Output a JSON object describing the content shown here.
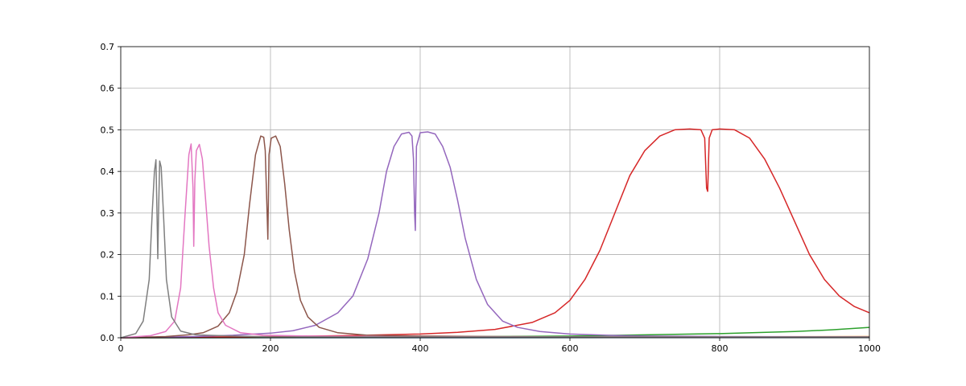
{
  "chart_data": {
    "type": "line",
    "title": "",
    "xlabel": "",
    "ylabel": "",
    "xlim": [
      0,
      1000
    ],
    "ylim": [
      0,
      0.7
    ],
    "xticks": [
      "0",
      "200",
      "400",
      "600",
      "800",
      "1000"
    ],
    "yticks": [
      "0.0",
      "0.1",
      "0.2",
      "0.3",
      "0.4",
      "0.5",
      "0.6",
      "0.7"
    ],
    "grid": true,
    "legend": "none",
    "series": [
      {
        "color": "#7f7f7f",
        "x": [
          0,
          20,
          30,
          38,
          42,
          45,
          47,
          48.5,
          49.5,
          50.5,
          52,
          54,
          57,
          61,
          68,
          80,
          100,
          150,
          200,
          1000
        ],
        "y": [
          0.0,
          0.01,
          0.04,
          0.14,
          0.3,
          0.4,
          0.428,
          0.29,
          0.19,
          0.3,
          0.425,
          0.41,
          0.3,
          0.14,
          0.05,
          0.016,
          0.007,
          0.004,
          0.002,
          0.002
        ]
      },
      {
        "color": "#e377c2",
        "x": [
          0,
          40,
          60,
          72,
          80,
          86,
          91,
          94,
          96.5,
          97.5,
          99,
          101,
          105,
          109,
          113,
          118,
          124,
          130,
          140,
          160,
          190,
          250,
          400,
          1000
        ],
        "y": [
          0.0,
          0.005,
          0.015,
          0.04,
          0.12,
          0.3,
          0.44,
          0.466,
          0.36,
          0.22,
          0.38,
          0.45,
          0.465,
          0.43,
          0.34,
          0.22,
          0.12,
          0.06,
          0.03,
          0.012,
          0.006,
          0.004,
          0.002,
          0.002
        ]
      },
      {
        "color": "#8c564b",
        "x": [
          0,
          60,
          90,
          110,
          130,
          145,
          155,
          165,
          172,
          180,
          187,
          191,
          193,
          195.5,
          196.5,
          198,
          201,
          207,
          213,
          219,
          225,
          232,
          240,
          250,
          265,
          290,
          330,
          400,
          600,
          1000
        ],
        "y": [
          0.0,
          0.003,
          0.007,
          0.012,
          0.028,
          0.06,
          0.11,
          0.2,
          0.32,
          0.44,
          0.485,
          0.482,
          0.45,
          0.3,
          0.237,
          0.44,
          0.48,
          0.485,
          0.46,
          0.37,
          0.26,
          0.16,
          0.09,
          0.05,
          0.025,
          0.012,
          0.006,
          0.004,
          0.002,
          0.002
        ]
      },
      {
        "color": "#9467bd",
        "x": [
          0,
          100,
          150,
          200,
          230,
          260,
          290,
          310,
          330,
          345,
          355,
          365,
          375,
          385,
          389,
          391,
          392.5,
          393.5,
          395,
          400,
          410,
          420,
          430,
          440,
          450,
          460,
          475,
          490,
          510,
          530,
          560,
          600,
          650,
          700,
          800,
          1000
        ],
        "y": [
          0.0,
          0.003,
          0.006,
          0.011,
          0.017,
          0.03,
          0.06,
          0.1,
          0.19,
          0.3,
          0.4,
          0.46,
          0.49,
          0.494,
          0.485,
          0.43,
          0.3,
          0.258,
          0.46,
          0.493,
          0.495,
          0.49,
          0.46,
          0.41,
          0.33,
          0.24,
          0.14,
          0.08,
          0.04,
          0.025,
          0.015,
          0.009,
          0.006,
          0.004,
          0.003,
          0.002
        ]
      },
      {
        "color": "#d62728",
        "x": [
          0,
          200,
          300,
          400,
          450,
          500,
          550,
          580,
          600,
          620,
          640,
          660,
          680,
          700,
          720,
          740,
          760,
          775,
          780,
          782.5,
          784,
          786,
          790,
          800,
          820,
          840,
          860,
          880,
          900,
          920,
          940,
          960,
          980,
          1000
        ],
        "y": [
          0.0,
          0.003,
          0.005,
          0.009,
          0.013,
          0.02,
          0.037,
          0.06,
          0.09,
          0.14,
          0.21,
          0.3,
          0.39,
          0.45,
          0.485,
          0.5,
          0.502,
          0.5,
          0.48,
          0.36,
          0.352,
          0.48,
          0.5,
          0.502,
          0.5,
          0.48,
          0.43,
          0.36,
          0.28,
          0.2,
          0.14,
          0.1,
          0.075,
          0.06
        ]
      },
      {
        "color": "#2ca02c",
        "x": [
          0,
          200,
          400,
          600,
          700,
          800,
          900,
          950,
          1000
        ],
        "y": [
          0.0,
          0.001,
          0.002,
          0.004,
          0.007,
          0.01,
          0.015,
          0.019,
          0.025
        ]
      },
      {
        "color": "#1f77b4",
        "x": [
          0,
          500,
          1000
        ],
        "y": [
          0.0,
          0.0003,
          0.0008
        ]
      },
      {
        "color": "#ff7f0e",
        "x": [
          0,
          500,
          1000
        ],
        "y": [
          0.0,
          0.001,
          0.003
        ]
      }
    ]
  }
}
